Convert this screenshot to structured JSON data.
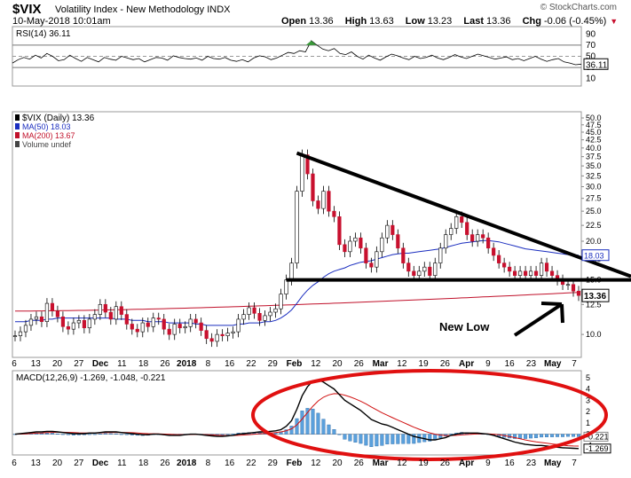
{
  "header": {
    "symbol": "$VIX",
    "name": "Volatility Index - New Methodology",
    "exchange": "INDX",
    "timestamp": "10-May-2018 10:01am",
    "open_label": "Open",
    "open": "13.36",
    "high_label": "High",
    "high": "13.63",
    "low_label": "Low",
    "low": "13.23",
    "last_label": "Last",
    "last": "13.36",
    "chg_label": "Chg",
    "chg": "-0.06 (-0.45%)",
    "copyright": "© StockCharts.com"
  },
  "colors": {
    "up": "#ffffff",
    "down": "#c8102e",
    "ma50": "#1a2dbf",
    "ma200": "#c0102a",
    "macd_hist": "#5aa0dc",
    "annotation": "#000000",
    "ellipse": "#e01010",
    "rsi_fill": "#3a9a3a"
  },
  "chart_data": [
    {
      "type": "line",
      "panel": "rsi",
      "legend": "RSI(14) 36.11",
      "last_label": "36.11",
      "y_ticks": [
        "90",
        "70",
        "50",
        "30",
        "10"
      ],
      "ylim": [
        0,
        100
      ],
      "levels": [
        70,
        50,
        30
      ],
      "values": [
        38,
        44,
        48,
        45,
        52,
        47,
        55,
        50,
        42,
        44,
        52,
        46,
        41,
        48,
        44,
        40,
        48,
        45,
        43,
        50,
        47,
        44,
        46,
        40,
        44,
        48,
        47,
        43,
        51,
        48,
        46,
        45,
        47,
        43,
        50,
        46,
        45,
        48,
        43,
        41,
        44,
        40,
        47,
        51,
        49,
        44,
        47,
        52,
        57,
        55,
        60,
        58,
        78,
        70,
        63,
        60,
        64,
        55,
        53,
        58,
        50,
        45,
        52,
        47,
        43,
        49,
        54,
        51,
        47,
        44,
        50,
        46,
        48,
        52,
        47,
        44,
        48,
        53,
        49,
        46,
        50,
        54,
        51,
        48,
        45,
        47,
        49,
        44,
        46,
        42,
        46,
        50,
        45,
        41,
        44,
        46,
        40,
        38,
        35,
        36
      ]
    },
    {
      "type": "candlestick",
      "panel": "price",
      "legend": [
        "$VIX (Daily) 13.36",
        "MA(50) 18.03",
        "MA(200) 13.67",
        "Volume undef"
      ],
      "last_label": "13.36",
      "ma50_label": "18.03",
      "y_scale": "log",
      "ylim": [
        8.6,
        51
      ],
      "y_ticks": [
        "50.0",
        "47.5",
        "45.0",
        "42.5",
        "40.0",
        "37.5",
        "35.0",
        "32.5",
        "30.0",
        "27.5",
        "25.0",
        "22.5",
        "20.0",
        "17.5",
        "15.0",
        "12.5",
        "10.0"
      ],
      "x_labels": [
        "6",
        "13",
        "20",
        "27",
        "Dec",
        "11",
        "18",
        "26",
        "2018",
        "8",
        "16",
        "22",
        "29",
        "Feb",
        "12",
        "20",
        "26",
        "Mar",
        "12",
        "19",
        "26",
        "Apr",
        "9",
        "16",
        "23",
        "May",
        "7"
      ],
      "close": [
        9.9,
        10.2,
        10.7,
        11.2,
        11.4,
        11.0,
        12.6,
        11.9,
        11.4,
        10.6,
        10.4,
        10.9,
        11.1,
        10.5,
        11.2,
        11.6,
        12.5,
        11.8,
        11.2,
        12.3,
        11.6,
        10.8,
        10.4,
        10.2,
        10.9,
        10.6,
        11.3,
        11.2,
        10.4,
        10.0,
        10.8,
        10.5,
        10.6,
        11.2,
        10.9,
        10.3,
        9.7,
        9.5,
        10.0,
        9.9,
        10.1,
        10.2,
        11.2,
        11.6,
        12.2,
        11.7,
        11.1,
        11.5,
        11.8,
        12.1,
        13.5,
        15.0,
        17.0,
        29.0,
        38.0,
        33.0,
        27.0,
        25.5,
        29.0,
        25.0,
        24.0,
        19.5,
        18.5,
        20.0,
        20.5,
        19.0,
        17.0,
        16.5,
        18.5,
        20.5,
        22.5,
        21.0,
        19.0,
        17.0,
        16.0,
        15.5,
        16.0,
        16.5,
        15.5,
        17.0,
        19.0,
        21.0,
        22.0,
        24.0,
        23.0,
        21.0,
        20.0,
        21.0,
        20.5,
        19.0,
        18.0,
        17.0,
        16.5,
        16.0,
        15.5,
        16.0,
        15.5,
        16.0,
        15.5,
        17.0,
        16.0,
        15.5,
        15.0,
        14.5,
        14.5,
        13.8,
        13.36
      ],
      "ma50": [
        11.0,
        11.0,
        11.0,
        11.1,
        11.1,
        11.1,
        11.2,
        11.2,
        11.3,
        11.3,
        11.3,
        11.3,
        11.3,
        11.3,
        11.3,
        11.3,
        11.3,
        11.3,
        11.3,
        11.2,
        11.2,
        11.2,
        11.1,
        11.1,
        11.1,
        11.0,
        11.0,
        11.0,
        11.0,
        10.9,
        10.9,
        10.9,
        10.9,
        10.9,
        10.8,
        10.8,
        10.7,
        10.7,
        10.7,
        10.7,
        10.7,
        10.7,
        10.8,
        10.8,
        10.9,
        10.9,
        10.9,
        11.0,
        11.0,
        11.1,
        11.3,
        11.6,
        12.0,
        12.6,
        13.3,
        13.9,
        14.4,
        14.8,
        15.3,
        15.7,
        16.0,
        16.2,
        16.4,
        16.7,
        16.9,
        17.1,
        17.2,
        17.3,
        17.5,
        17.7,
        17.9,
        18.1,
        18.2,
        18.3,
        18.3,
        18.4,
        18.5,
        18.6,
        18.7,
        18.8,
        18.9,
        19.1,
        19.3,
        19.5,
        19.7,
        19.8,
        19.9,
        20.0,
        20.1,
        20.1,
        20.0,
        19.9,
        19.7,
        19.5,
        19.3,
        19.1,
        18.9,
        18.8,
        18.7,
        18.6,
        18.5,
        18.4,
        18.3,
        18.2,
        18.1,
        18.05,
        18.03
      ],
      "ma200_start": 11.9,
      "ma200_end": 13.67
    },
    {
      "type": "line",
      "panel": "macd",
      "legend": "MACD(12,26,9) -1.269, -1.048, -0.221",
      "last_labels": [
        "-0.221",
        "-1.269"
      ],
      "y_ticks": [
        "5",
        "4",
        "3",
        "2",
        "1",
        "0",
        "-1"
      ],
      "ylim": [
        -1.6,
        5.3
      ],
      "x_labels": [
        "6",
        "13",
        "20",
        "27",
        "Dec",
        "11",
        "18",
        "26",
        "2018",
        "8",
        "16",
        "22",
        "29",
        "Feb",
        "12",
        "20",
        "26",
        "Mar",
        "12",
        "19",
        "26",
        "Apr",
        "9",
        "16",
        "23",
        "May",
        "7"
      ],
      "macd": [
        0.0,
        0.05,
        0.1,
        0.15,
        0.2,
        0.2,
        0.25,
        0.25,
        0.2,
        0.15,
        0.1,
        0.05,
        0.05,
        0.05,
        0.1,
        0.1,
        0.15,
        0.2,
        0.2,
        0.2,
        0.15,
        0.1,
        0.05,
        0.0,
        -0.05,
        -0.05,
        0.0,
        0.0,
        -0.05,
        -0.1,
        -0.1,
        -0.1,
        -0.05,
        0.0,
        0.0,
        -0.05,
        -0.1,
        -0.15,
        -0.2,
        -0.2,
        -0.15,
        -0.1,
        0.0,
        0.05,
        0.1,
        0.15,
        0.2,
        0.2,
        0.25,
        0.3,
        0.4,
        0.7,
        1.2,
        2.2,
        3.4,
        4.2,
        4.7,
        4.8,
        4.6,
        4.3,
        4.0,
        3.5,
        3.0,
        2.7,
        2.4,
        2.1,
        1.7,
        1.3,
        1.1,
        0.9,
        0.8,
        0.6,
        0.4,
        0.2,
        0.0,
        -0.2,
        -0.3,
        -0.4,
        -0.5,
        -0.5,
        -0.4,
        -0.3,
        -0.1,
        0.0,
        0.1,
        0.1,
        0.1,
        0.1,
        0.05,
        0.0,
        -0.1,
        -0.25,
        -0.4,
        -0.55,
        -0.7,
        -0.8,
        -0.9,
        -0.95,
        -1.0,
        -1.0,
        -1.05,
        -1.1,
        -1.15,
        -1.2,
        -1.22,
        -1.25,
        -1.269
      ],
      "signal": [
        0.0,
        0.01,
        0.03,
        0.06,
        0.09,
        0.11,
        0.14,
        0.16,
        0.17,
        0.17,
        0.16,
        0.14,
        0.12,
        0.11,
        0.11,
        0.11,
        0.12,
        0.14,
        0.15,
        0.16,
        0.16,
        0.15,
        0.13,
        0.1,
        0.07,
        0.05,
        0.04,
        0.03,
        0.01,
        -0.01,
        -0.03,
        -0.04,
        -0.04,
        -0.03,
        -0.02,
        -0.03,
        -0.04,
        -0.06,
        -0.09,
        -0.11,
        -0.12,
        -0.12,
        -0.1,
        -0.07,
        -0.04,
        -0.0,
        0.04,
        0.07,
        0.11,
        0.15,
        0.2,
        0.3,
        0.48,
        0.82,
        1.34,
        1.91,
        2.47,
        2.94,
        3.27,
        3.47,
        3.58,
        3.56,
        3.45,
        3.3,
        3.12,
        2.92,
        2.68,
        2.41,
        2.15,
        1.9,
        1.68,
        1.46,
        1.25,
        1.04,
        0.83,
        0.62,
        0.44,
        0.27,
        0.12,
        0.0,
        -0.08,
        -0.12,
        -0.12,
        -0.1,
        -0.06,
        -0.03,
        -0.0,
        0.02,
        0.03,
        0.02,
        -0.0,
        -0.05,
        -0.12,
        -0.21,
        -0.31,
        -0.41,
        -0.51,
        -0.6,
        -0.68,
        -0.74,
        -0.8,
        -0.86,
        -0.92,
        -0.97,
        -1.02,
        -1.04,
        -1.048
      ]
    }
  ],
  "annotations": {
    "new_low_label": "New Low"
  }
}
